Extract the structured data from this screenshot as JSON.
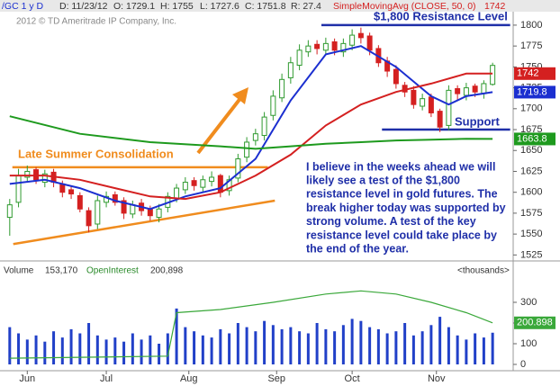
{
  "header": {
    "symbol": "/GC 1 y D",
    "date": "D: 11/23/12",
    "open": "O: 1729.1",
    "high": "H: 1755",
    "low": "L: 1727.6",
    "close": "C: 1751.8",
    "range": "R: 27.4",
    "study": "SimpleMovingAvg (CLOSE, 50, 0)",
    "study_value": "1742",
    "copyright": "2012 © TD Ameritrade IP Company, Inc."
  },
  "chart_data": [
    {
      "type": "candlestick",
      "x": [
        0,
        1,
        2,
        3,
        4,
        5,
        6,
        7,
        8,
        9,
        10,
        11,
        12,
        13,
        14,
        15,
        16,
        17,
        18,
        19,
        20,
        21,
        22,
        23,
        24,
        25,
        26,
        27,
        28,
        29,
        30,
        31,
        32,
        33,
        34,
        35,
        36,
        37,
        38,
        39,
        40,
        41,
        42,
        43,
        44,
        45,
        46,
        47,
        48,
        49,
        50,
        51,
        52,
        53,
        54,
        55
      ],
      "open": [
        1570,
        1588,
        1618,
        1627,
        1612,
        1624,
        1610,
        1603,
        1596,
        1578,
        1562,
        1588,
        1597,
        1590,
        1574,
        1587,
        1580,
        1570,
        1582,
        1593,
        1603,
        1614,
        1606,
        1613,
        1620,
        1602,
        1617,
        1642,
        1662,
        1668,
        1692,
        1713,
        1737,
        1752,
        1768,
        1777,
        1770,
        1780,
        1768,
        1776,
        1790,
        1787,
        1772,
        1757,
        1747,
        1728,
        1722,
        1703,
        1714,
        1697,
        1680,
        1724,
        1716,
        1727,
        1718,
        1729.1
      ],
      "high": [
        1592,
        1628,
        1632,
        1630,
        1627,
        1628,
        1614,
        1608,
        1600,
        1582,
        1596,
        1601,
        1601,
        1594,
        1590,
        1592,
        1584,
        1586,
        1600,
        1610,
        1618,
        1618,
        1620,
        1625,
        1622,
        1620,
        1646,
        1666,
        1676,
        1696,
        1722,
        1742,
        1762,
        1777,
        1782,
        1782,
        1785,
        1784,
        1784,
        1795,
        1797,
        1791,
        1776,
        1762,
        1752,
        1732,
        1727,
        1718,
        1718,
        1700,
        1728,
        1728,
        1731,
        1730,
        1734,
        1755
      ],
      "low": [
        1548,
        1582,
        1612,
        1610,
        1606,
        1606,
        1594,
        1592,
        1576,
        1552,
        1556,
        1582,
        1584,
        1568,
        1569,
        1572,
        1566,
        1564,
        1576,
        1588,
        1598,
        1602,
        1600,
        1607,
        1594,
        1596,
        1612,
        1636,
        1656,
        1662,
        1686,
        1708,
        1730,
        1746,
        1762,
        1765,
        1764,
        1764,
        1762,
        1770,
        1778,
        1764,
        1750,
        1738,
        1724,
        1714,
        1700,
        1698,
        1690,
        1672,
        1674,
        1710,
        1710,
        1714,
        1712,
        1727.6
      ],
      "close": [
        1585,
        1620,
        1625,
        1615,
        1622,
        1612,
        1600,
        1598,
        1580,
        1560,
        1590,
        1595,
        1588,
        1575,
        1585,
        1578,
        1572,
        1580,
        1595,
        1605,
        1612,
        1608,
        1615,
        1618,
        1600,
        1615,
        1640,
        1660,
        1670,
        1690,
        1715,
        1735,
        1755,
        1770,
        1775,
        1772,
        1778,
        1770,
        1778,
        1788,
        1785,
        1770,
        1755,
        1745,
        1730,
        1720,
        1705,
        1712,
        1695,
        1678,
        1722,
        1718,
        1725,
        1720,
        1730,
        1751.8
      ],
      "up_color": "#2f9a2f",
      "down_color": "#d42020",
      "lines": [
        {
          "color": "#1b2fd0",
          "x": [
            0,
            4,
            8,
            12,
            16,
            20,
            24,
            28,
            32,
            36,
            38,
            40,
            44,
            48,
            50,
            52,
            55
          ],
          "values": [
            1610,
            1615,
            1605,
            1590,
            1580,
            1595,
            1605,
            1640,
            1710,
            1765,
            1770,
            1775,
            1750,
            1715,
            1705,
            1715,
            1719.8
          ],
          "tag": 1719.8
        },
        {
          "color": "#d42020",
          "x": [
            0,
            4,
            8,
            12,
            16,
            20,
            24,
            28,
            32,
            36,
            40,
            44,
            48,
            52,
            55
          ],
          "values": [
            1620,
            1620,
            1615,
            1605,
            1595,
            1592,
            1600,
            1620,
            1645,
            1680,
            1705,
            1720,
            1730,
            1742,
            1742
          ],
          "tag": 1742
        },
        {
          "color": "#1e9a1e",
          "x": [
            0,
            8,
            16,
            24,
            28,
            32,
            36,
            40,
            44,
            48,
            52,
            55
          ],
          "values": [
            1691,
            1670,
            1660,
            1655,
            1652,
            1655,
            1658,
            1660,
            1662,
            1663,
            1664,
            1663.8
          ],
          "tag": 1663.8
        }
      ],
      "annotations": [
        {
          "text": "$1,800 Resistance Level",
          "y": 1800,
          "x": [
            35.5,
            57
          ],
          "color": "#1f2fa8"
        },
        {
          "text": "Support",
          "y": 1675,
          "x": [
            42.4,
            57
          ],
          "color": "#1f2fa8"
        },
        {
          "text": "Late Summer Consolidation",
          "y": 1630,
          "x": [
            0.3,
            29.4
          ],
          "color": "#f08c1e"
        }
      ],
      "trendline": {
        "x": [
          0.4,
          30.2
        ],
        "y": [
          1538,
          1590
        ],
        "color": "#f08c1e"
      },
      "comment": [
        "I believe in the weeks ahead we will",
        "likely see a test of the $1,800",
        "resistance level in gold futures. The",
        "break higher today was supported by",
        "strong volume. A test of the key",
        "resistance level could take place by",
        "the end of the year."
      ],
      "xlim": [
        -0.8,
        55.6
      ],
      "ylim": [
        1520,
        1815
      ],
      "yticks": [
        1525,
        1550,
        1575,
        1600,
        1625,
        1650,
        1675,
        1700,
        1725,
        1750,
        1775,
        1800
      ]
    },
    {
      "type": "bar",
      "volume_label": "Volume",
      "volume_text": "153,170",
      "oi_label": "OpenInterest",
      "oi_text": "200,898",
      "units": "<thousands>",
      "x": [
        0,
        1,
        2,
        3,
        4,
        5,
        6,
        7,
        8,
        9,
        10,
        11,
        12,
        13,
        14,
        15,
        16,
        17,
        18,
        19,
        20,
        21,
        22,
        23,
        24,
        25,
        26,
        27,
        28,
        29,
        30,
        31,
        32,
        33,
        34,
        35,
        36,
        37,
        38,
        39,
        40,
        41,
        42,
        43,
        44,
        45,
        46,
        47,
        48,
        49,
        50,
        51,
        52,
        53,
        54,
        55
      ],
      "values": [
        180,
        150,
        120,
        140,
        110,
        160,
        130,
        170,
        150,
        200,
        140,
        120,
        130,
        110,
        150,
        120,
        140,
        100,
        150,
        270,
        180,
        160,
        140,
        130,
        170,
        150,
        200,
        180,
        160,
        210,
        190,
        170,
        180,
        160,
        150,
        200,
        170,
        160,
        190,
        220,
        210,
        180,
        170,
        150,
        160,
        200,
        140,
        160,
        190,
        230,
        180,
        140,
        120,
        150,
        130,
        153.17
      ],
      "color": "#2140c8",
      "oi": {
        "color": "#3aa83a",
        "x": [
          0,
          10,
          18,
          19,
          24,
          30,
          36,
          40,
          44,
          48,
          52,
          55
        ],
        "values": [
          30,
          35,
          40,
          250,
          265,
          300,
          340,
          355,
          340,
          300,
          250,
          200.898
        ],
        "tag": 200.898
      },
      "xlim": [
        -0.8,
        55.6
      ],
      "ylim": [
        0,
        413
      ],
      "yticks": [
        0,
        100,
        200,
        300
      ],
      "xticks": [
        {
          "value": 2,
          "label": "Jun"
        },
        {
          "value": 11,
          "label": "Jul"
        },
        {
          "value": 20.4,
          "label": "Aug"
        },
        {
          "value": 30.4,
          "label": "Sep"
        },
        {
          "value": 39,
          "label": "Oct"
        },
        {
          "value": 48.6,
          "label": "Nov"
        }
      ]
    }
  ]
}
